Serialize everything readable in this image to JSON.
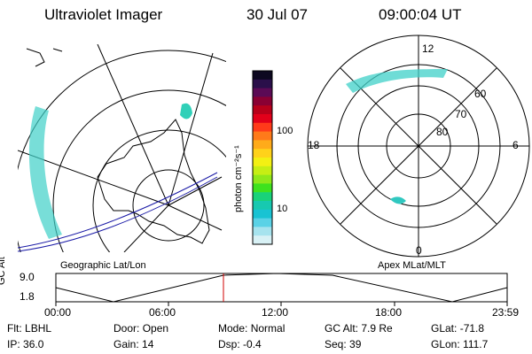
{
  "header": {
    "title": "Ultraviolet Imager",
    "date": "30 Jul 07",
    "time": "09:00:04 UT"
  },
  "colorbar": {
    "unit_label": "photon cm⁻²s⁻¹",
    "ticks": [
      "100",
      "10"
    ],
    "colors": [
      "#0d0820",
      "#2a0f4a",
      "#5b0a55",
      "#8a0033",
      "#b8001a",
      "#e2001a",
      "#ff3a1a",
      "#ff7a1a",
      "#ffab1a",
      "#ffd21a",
      "#f3f013",
      "#c6ee14",
      "#8fe81a",
      "#3ee21e",
      "#19d27a",
      "#17c9b0",
      "#19c3d3",
      "#5ad2e6",
      "#a6e3ee",
      "#d8f1f5"
    ]
  },
  "left_map": {
    "label": "Geographic Lat/Lon"
  },
  "right_map": {
    "label": "Apex MLat/MLT",
    "mlt_labels": {
      "top": "12",
      "left": "18",
      "right": "6",
      "bottom": "0"
    },
    "lat_labels": [
      "60",
      "70",
      "80"
    ]
  },
  "altitude_plot": {
    "ylabel": "GC Alt",
    "yticks": [
      "9.0",
      "1.8"
    ],
    "xticks": [
      "00:00",
      "06:00",
      "12:00",
      "18:00",
      "23:59"
    ]
  },
  "footer": {
    "row1": [
      {
        "name": "Flt:",
        "value": "LBHL"
      },
      {
        "name": "Door:",
        "value": "Open"
      },
      {
        "name": "Mode:",
        "value": "Normal"
      },
      {
        "name": "GC Alt:",
        "value": "7.9 Re"
      },
      {
        "name": "GLat:",
        "value": "-71.8"
      }
    ],
    "row2": [
      {
        "name": "IP:",
        "value": "36.0"
      },
      {
        "name": "Gain:",
        "value": "14"
      },
      {
        "name": "Dsp:",
        "value": "-0.4"
      },
      {
        "name": "Seq:",
        "value": "39"
      },
      {
        "name": "GLon:",
        "value": "111.7"
      }
    ]
  }
}
